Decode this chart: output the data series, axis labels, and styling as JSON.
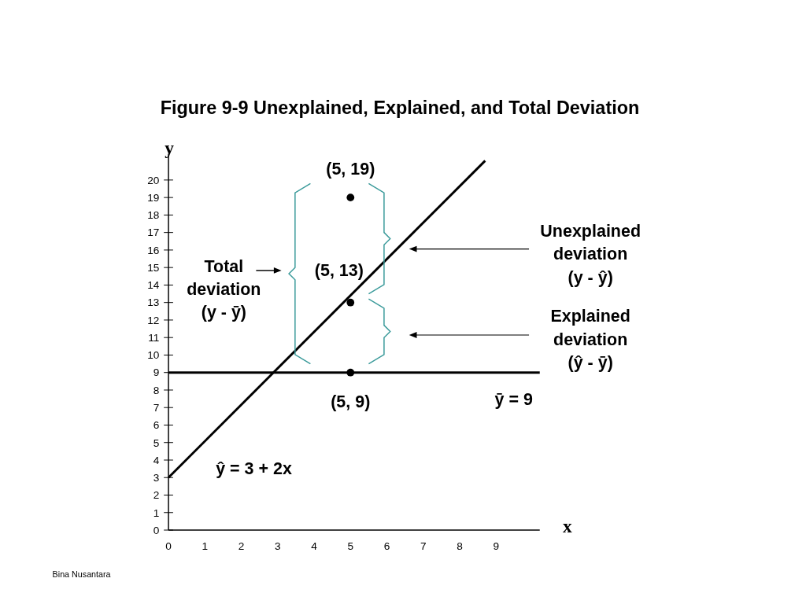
{
  "chart_data": {
    "type": "line",
    "title": "Figure 9-9  Unexplained, Explained, and Total Deviation",
    "xlabel": "x",
    "ylabel": "y",
    "xlim": [
      0,
      10.2
    ],
    "ylim": [
      0,
      21.5
    ],
    "xticks": [
      0,
      1,
      2,
      3,
      4,
      5,
      6,
      7,
      8,
      9
    ],
    "yticks": [
      0,
      1,
      2,
      3,
      4,
      5,
      6,
      7,
      8,
      9,
      10,
      11,
      12,
      13,
      14,
      15,
      16,
      17,
      18,
      19,
      20
    ],
    "grid": false,
    "legend": false,
    "series": [
      {
        "name": "ŷ = 3 + 2x",
        "color": "#000000",
        "x": [
          0,
          8.7
        ],
        "values": [
          3,
          21.1
        ],
        "marker": "none",
        "line_style": "solid"
      },
      {
        "type": "scatter",
        "color": "#000000",
        "x": [
          5,
          5,
          5
        ],
        "values": [
          19,
          13,
          9
        ],
        "marker": "circle"
      }
    ],
    "ref_lines": [
      {
        "axis": "y",
        "value": 9,
        "label": "ȳ = 9",
        "color": "#000000",
        "line_style": "solid"
      }
    ],
    "annotations": [
      "(5, 19)",
      "(5, 13)",
      "(5, 9)",
      "Total\ndeviation\n(y - ȳ)",
      "Unexplained\ndeviation\n(y - ŷ)",
      "Explained\ndeviation\n(ŷ - ȳ)",
      "Bina Nusantara"
    ]
  }
}
